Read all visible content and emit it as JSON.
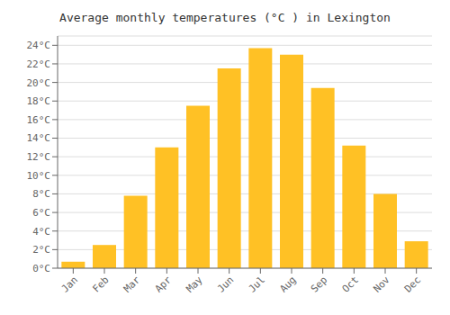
{
  "chart_data": {
    "type": "bar",
    "title": "Average monthly temperatures (°C ) in Lexington",
    "categories": [
      "Jan",
      "Feb",
      "Mar",
      "Apr",
      "May",
      "Jun",
      "Jul",
      "Aug",
      "Sep",
      "Oct",
      "Nov",
      "Dec"
    ],
    "values": [
      0.7,
      2.5,
      7.8,
      13.0,
      17.5,
      21.5,
      23.7,
      23.0,
      19.4,
      13.2,
      8.0,
      2.9
    ],
    "color": "#FFC125",
    "ylim": [
      0,
      25
    ],
    "yticks": [
      {
        "value": 0,
        "label": "0°C"
      },
      {
        "value": 2,
        "label": "2°C"
      },
      {
        "value": 4,
        "label": "4°C"
      },
      {
        "value": 6,
        "label": "6°C"
      },
      {
        "value": 8,
        "label": "8°C"
      },
      {
        "value": 10,
        "label": "10°C"
      },
      {
        "value": 12,
        "label": "12°C"
      },
      {
        "value": 14,
        "label": "14°C"
      },
      {
        "value": 16,
        "label": "16°C"
      },
      {
        "value": 18,
        "label": "18°C"
      },
      {
        "value": 20,
        "label": "20°C"
      },
      {
        "value": 22,
        "label": "22°C"
      },
      {
        "value": 24,
        "label": "24°C"
      }
    ],
    "grid": true
  }
}
